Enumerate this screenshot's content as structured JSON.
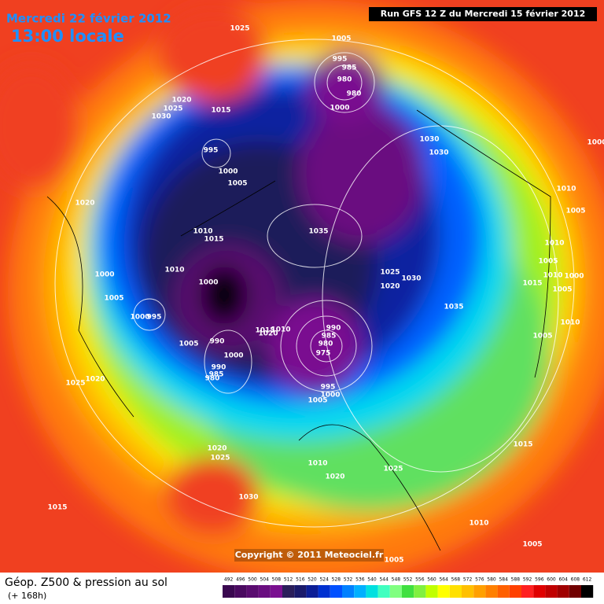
{
  "header": {
    "date": "Mercredi 22 février 2012",
    "time": "13:00 locale",
    "run": "Run GFS 12 Z du Mercredi 15 février 2012"
  },
  "copyright": "Copyright © 2011 Meteociel.fr",
  "legend": {
    "title": "Géop. Z500 & pression au sol",
    "subtitle": "(+ 168h)",
    "levels": [
      492,
      496,
      500,
      504,
      508,
      512,
      516,
      520,
      524,
      528,
      532,
      536,
      540,
      544,
      548,
      552,
      556,
      560,
      564,
      568,
      572,
      576,
      580,
      584,
      588,
      592,
      596,
      600,
      604,
      608,
      612
    ],
    "colors": [
      "#3a0850",
      "#4a0a60",
      "#5a0c70",
      "#6a0e80",
      "#7a1090",
      "#2a1e5a",
      "#1a1a6a",
      "#0c1e96",
      "#0030d0",
      "#0050ff",
      "#0080ff",
      "#00b0ff",
      "#00e0e0",
      "#40ffc0",
      "#80ff80",
      "#40e040",
      "#80f040",
      "#c0ff00",
      "#ffff00",
      "#ffe000",
      "#ffc000",
      "#ffa000",
      "#ff8000",
      "#ff6000",
      "#ff4000",
      "#ff2020",
      "#e00000",
      "#c00000",
      "#a00000",
      "#700000",
      "#000000"
    ]
  },
  "isobar_labels": [
    1025,
    1005,
    995,
    985,
    980,
    980,
    1000,
    1020,
    1025,
    1030,
    1015,
    995,
    1000,
    1005,
    1030,
    1030,
    1000,
    1020,
    1010,
    1015,
    1035,
    1010,
    1000,
    1005,
    1000,
    1025,
    1030,
    1020,
    1035,
    1000,
    995,
    1010,
    1005,
    1010,
    1005,
    1015,
    1010,
    1000,
    1005,
    1010,
    1005,
    990,
    985,
    980,
    975,
    1015,
    1010,
    1020,
    990,
    1005,
    1000,
    990,
    985,
    980,
    995,
    1000,
    1005,
    1025,
    1020,
    1020,
    1025,
    1030,
    1010,
    1020,
    1025,
    1015,
    1015,
    1010,
    1005,
    1005
  ]
}
